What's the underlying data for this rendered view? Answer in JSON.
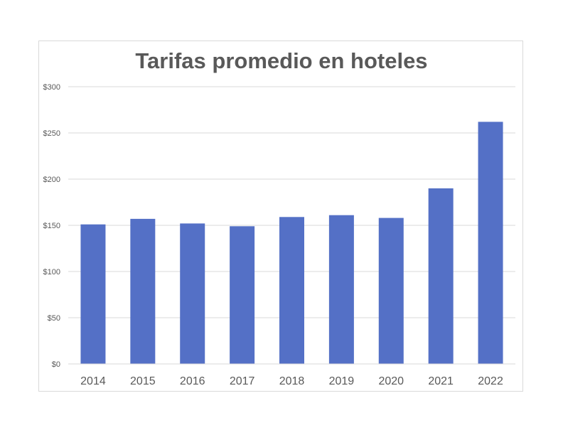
{
  "chart_data": {
    "type": "bar",
    "title": "Tarifas promedio en hoteles",
    "xlabel": "",
    "ylabel": "",
    "categories": [
      "2014",
      "2015",
      "2016",
      "2017",
      "2018",
      "2019",
      "2020",
      "2021",
      "2022"
    ],
    "values": [
      151,
      157,
      152,
      149,
      159,
      161,
      158,
      190,
      262
    ],
    "ylim": [
      0,
      300
    ],
    "yticks": [
      0,
      50,
      100,
      150,
      200,
      250,
      300
    ],
    "ytick_labels": [
      "$0",
      "$50",
      "$100",
      "$150",
      "$200",
      "$250",
      "$300"
    ],
    "grid": true,
    "legend": "none",
    "colors": {
      "bar": "#5470c6",
      "grid": "#d9d9d9",
      "text": "#595959",
      "title": "#595959"
    }
  }
}
